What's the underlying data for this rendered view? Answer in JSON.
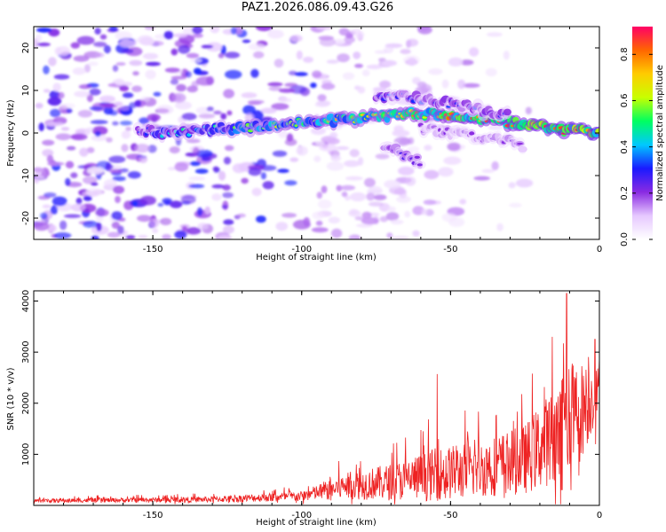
{
  "title": "PAZ1.2026.086.09.43.G26",
  "chart_data": [
    {
      "type": "heatmap",
      "xlabel": "Height of straight line (km)",
      "ylabel": "Frequency (Hz)",
      "xlim": [
        -190,
        0
      ],
      "ylim": [
        -25,
        25
      ],
      "xticks": [
        -150,
        -100,
        -50,
        0
      ],
      "yticks": [
        -20,
        -10,
        0,
        10,
        20
      ],
      "colorbar": {
        "label": "Normalized spectral amplitude",
        "range": [
          0,
          0.92
        ],
        "ticks": [
          0.0,
          0.2,
          0.4,
          0.6,
          0.8
        ],
        "tick_labels": [
          "0.0",
          "0.2",
          "0.4",
          "0.6",
          "0.8"
        ],
        "colors": [
          "#ffffff",
          "#e6c8ff",
          "#8a2be2",
          "#1a1aff",
          "#00c8ff",
          "#00ff60",
          "#c8ff00",
          "#ffcc00",
          "#ff6600",
          "#ff0066"
        ]
      },
      "ridges": [
        {
          "name": "main",
          "points": [
            [
              -155,
              1
            ],
            [
              -145,
              -0.5
            ],
            [
              -130,
              1
            ],
            [
              -120,
              1
            ],
            [
              -110,
              2
            ],
            [
              -100,
              2.5
            ],
            [
              -90,
              3
            ],
            [
              -80,
              3.5
            ],
            [
              -70,
              4
            ],
            [
              -60,
              4.5
            ],
            [
              -50,
              4
            ],
            [
              -40,
              3.5
            ],
            [
              -30,
              2.5
            ],
            [
              -20,
              1.5
            ],
            [
              -10,
              0.5
            ],
            [
              0,
              0
            ]
          ],
          "peak": 0.92
        },
        {
          "name": "upper",
          "points": [
            [
              -75,
              8.5
            ],
            [
              -65,
              8.5
            ],
            [
              -55,
              7.5
            ],
            [
              -45,
              6.5
            ],
            [
              -38,
              5
            ],
            [
              -30,
              4
            ]
          ],
          "peak": 0.45
        },
        {
          "name": "lower",
          "points": [
            [
              -72,
              -3
            ],
            [
              -66,
              -5
            ],
            [
              -60,
              -7
            ]
          ],
          "peak": 0.35
        },
        {
          "name": "secondary",
          "points": [
            [
              -60,
              1
            ],
            [
              -50,
              0
            ],
            [
              -40,
              -1
            ],
            [
              -30,
              -2
            ],
            [
              -25,
              -3.5
            ]
          ],
          "peak": 0.3
        }
      ]
    },
    {
      "type": "line",
      "series": [
        {
          "name": "SNR",
          "color": "#ee2222"
        }
      ],
      "xlabel": "Height of straight line (km)",
      "ylabel": "SNR (10 * v/v)",
      "xlim": [
        -190,
        0
      ],
      "ylim": [
        0,
        4200
      ],
      "xticks": [
        -150,
        -100,
        -50,
        0
      ],
      "yticks": [
        1000,
        2000,
        3000,
        4000
      ],
      "envelope": [
        {
          "x": -190,
          "base": 80,
          "amp": 90
        },
        {
          "x": -130,
          "base": 100,
          "amp": 140
        },
        {
          "x": -100,
          "base": 150,
          "amp": 250
        },
        {
          "x": -85,
          "base": 300,
          "amp": 650
        },
        {
          "x": -70,
          "base": 350,
          "amp": 900
        },
        {
          "x": -55,
          "base": 450,
          "amp": 1300
        },
        {
          "x": -40,
          "base": 550,
          "amp": 1400
        },
        {
          "x": -25,
          "base": 700,
          "amp": 1700
        },
        {
          "x": -15,
          "base": 1100,
          "amp": 2400
        },
        {
          "x": -8,
          "base": 1400,
          "amp": 2800
        },
        {
          "x": 0,
          "base": 2100,
          "amp": 1200
        }
      ],
      "peaks": [
        [
          -54.5,
          2570
        ],
        [
          -11,
          4150
        ],
        [
          -9.5,
          3900
        ],
        [
          -1.5,
          3250
        ]
      ]
    }
  ]
}
